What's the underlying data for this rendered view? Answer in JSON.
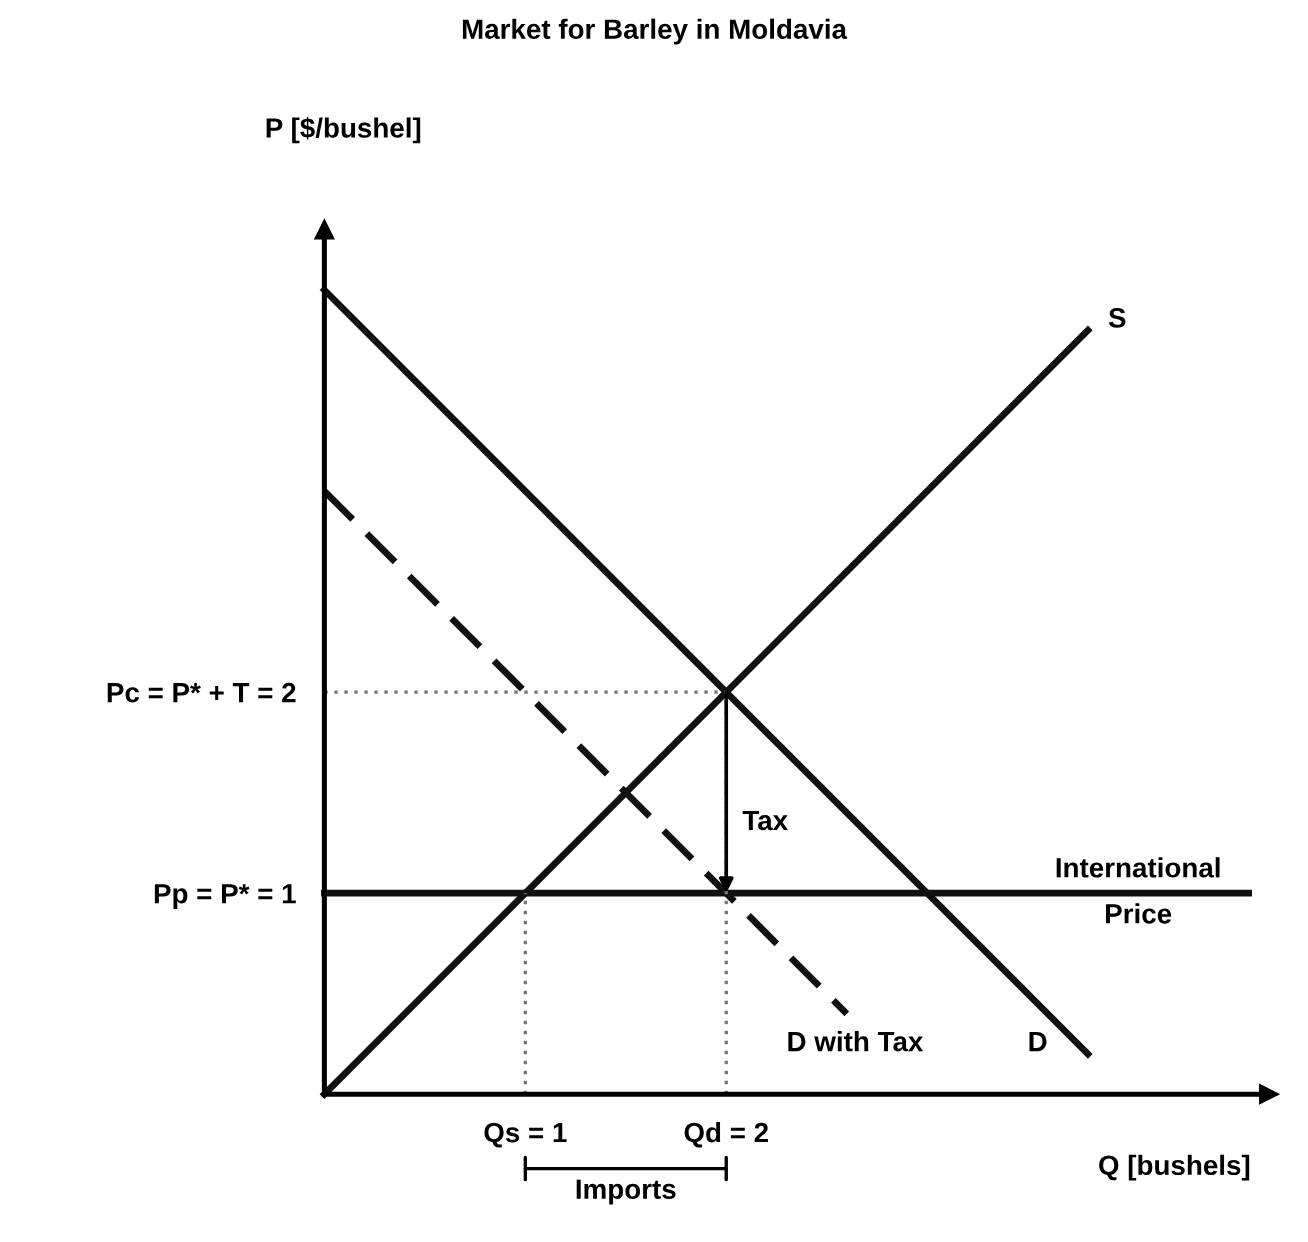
{
  "chart_data": {
    "type": "line",
    "title": "Market for Barley in Moldavia",
    "xlabel": "Q [bushels]",
    "ylabel": "P [$/bushel]",
    "xlim": [
      0,
      4.7
    ],
    "ylim": [
      0,
      4.3
    ],
    "xticks": [
      {
        "value": 1,
        "label": "Qs = 1"
      },
      {
        "value": 2,
        "label": "Qd = 2"
      }
    ],
    "yticks": [
      {
        "value": 1,
        "label": "Pp = P* = 1"
      },
      {
        "value": 2,
        "label": "Pc = P* + T = 2"
      }
    ],
    "series": [
      {
        "name": "S",
        "color": "#111111",
        "x": [
          0,
          3.8
        ],
        "values": [
          0,
          3.8
        ],
        "line_style": "solid"
      },
      {
        "name": "D",
        "color": "#111111",
        "x": [
          0,
          3.8
        ],
        "values": [
          4,
          0.2
        ],
        "line_style": "solid"
      },
      {
        "name": "D with Tax",
        "color": "#111111",
        "x": [
          0,
          2.6
        ],
        "values": [
          3,
          0.4
        ],
        "line_style": "dashed"
      },
      {
        "name": "International\nPrice",
        "color": "#111111",
        "x": [
          0,
          4.6
        ],
        "values": [
          1,
          1
        ],
        "line_style": "solid"
      },
      {
        "color": "#777777",
        "x": [
          0,
          2
        ],
        "values": [
          2,
          2
        ],
        "line_style": "dotted"
      },
      {
        "color": "#777777",
        "x": [
          2,
          2
        ],
        "values": [
          0,
          2
        ],
        "line_style": "dotted"
      },
      {
        "color": "#777777",
        "x": [
          1,
          1
        ],
        "values": [
          0,
          1
        ],
        "line_style": "dotted"
      }
    ],
    "annotations": [
      {
        "text": "Tax",
        "x": 2,
        "y": 1.35
      },
      "Imports"
    ],
    "grid": false,
    "legend": false,
    "marker": "none"
  }
}
